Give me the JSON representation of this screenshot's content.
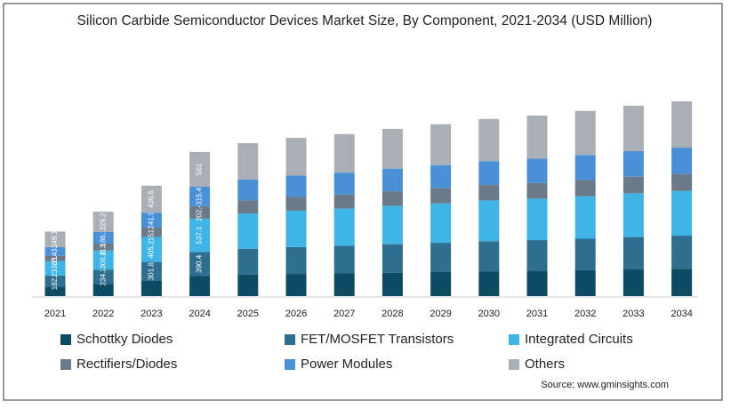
{
  "chart_data": {
    "type": "stacked_bar",
    "title": "Silicon Carbide Semiconductor Devices Market Size, By Component, 2021-2034  (USD Million)",
    "source": "Source: www.gminsights.com",
    "categories": [
      "2021",
      "2022",
      "2023",
      "2024",
      "2025",
      "2026",
      "2027",
      "2028",
      "2029",
      "2030",
      "2031",
      "2032",
      "2033",
      "2034"
    ],
    "series": [
      {
        "name": "Schottky Diodes",
        "color": "#0d4a63",
        "values": [
          150,
          195,
          250,
          325,
          346,
          358,
          367,
          379,
          389,
          401,
          409,
          419,
          431,
          441
        ]
      },
      {
        "name": "FET/MOSFET Transistors",
        "color": "#2e6e8e",
        "values": [
          182.4,
          234.2,
          301.8,
          390.4,
          421,
          435,
          445,
          460,
          473,
          487,
          496,
          509,
          524,
          536
        ],
        "value_labels": [
          "182.4",
          "234.2",
          "301.8",
          "390.4",
          null,
          null,
          null,
          null,
          null,
          null,
          null,
          null,
          null,
          null
        ]
      },
      {
        "name": "Integrated Circuits",
        "color": "#3fb4e6",
        "values": [
          233.2,
          306.8,
          405.2,
          537.1,
          569,
          589,
          603,
          622,
          639,
          659,
          672,
          689,
          708,
          725
        ],
        "value_labels": [
          "233.2",
          "306.8",
          "405.2",
          "537.1",
          null,
          null,
          null,
          null,
          null,
          null,
          null,
          null,
          null,
          null
        ]
      },
      {
        "name": "Rectifiers/Diodes",
        "color": "#6b7a88",
        "values": [
          85.6,
          113.6,
          151.2,
          202.4,
          215,
          223,
          228,
          235,
          242,
          249,
          254,
          261,
          268,
          274
        ],
        "value_labels": [
          "85.6",
          "113.6",
          "151.2",
          "202.4",
          null,
          null,
          null,
          null,
          null,
          null,
          null,
          null,
          null,
          null
        ]
      },
      {
        "name": "Power Modules",
        "color": "#4a90d6",
        "values": [
          143.8,
          186.2,
          241.9,
          315.4,
          334,
          346,
          354,
          365,
          375,
          387,
          394,
          404,
          416,
          425
        ],
        "value_labels": [
          "143.8",
          "186.2",
          "241.9",
          "315.4",
          null,
          null,
          null,
          null,
          null,
          null,
          null,
          null,
          null,
          null
        ]
      },
      {
        "name": "Others",
        "color": "#a9afb5",
        "values": [
          249.1,
          329.2,
          436.5,
          561,
          590,
          609,
          623,
          644,
          662,
          682,
          695,
          713,
          733,
          749
        ],
        "value_labels": [
          "249.1",
          "329.2",
          "436.5",
          "561",
          null,
          null,
          null,
          null,
          null,
          null,
          null,
          null,
          null,
          null
        ]
      }
    ]
  }
}
